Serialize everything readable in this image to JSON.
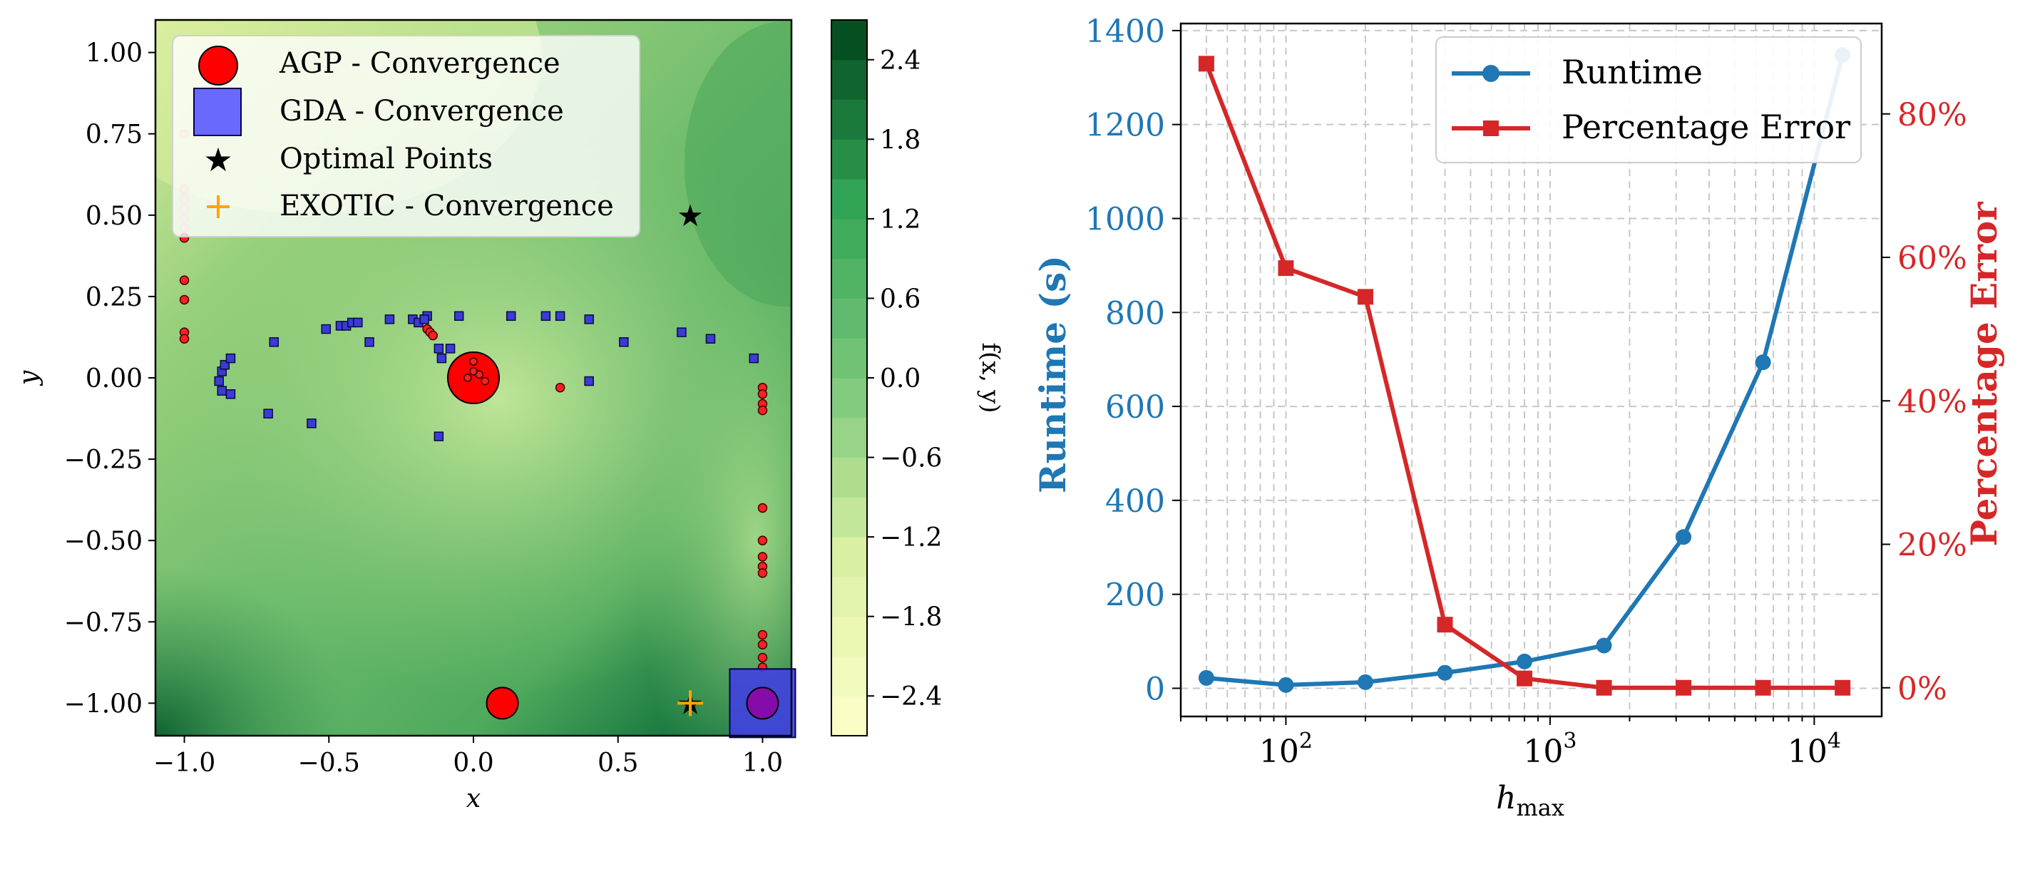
{
  "chart_data": [
    {
      "type": "contour",
      "xlabel": "x",
      "ylabel": "y",
      "xlim": [
        -1.1,
        1.1
      ],
      "ylim": [
        -1.1,
        1.1
      ],
      "xticks": [
        {
          "v": -1.0,
          "label": "−1.0"
        },
        {
          "v": -0.5,
          "label": "−0.5"
        },
        {
          "v": 0.0,
          "label": "0.0"
        },
        {
          "v": 0.5,
          "label": "0.5"
        },
        {
          "v": 1.0,
          "label": "1.0"
        }
      ],
      "yticks": [
        {
          "v": 1.0,
          "label": "1.00"
        },
        {
          "v": 0.75,
          "label": "0.75"
        },
        {
          "v": 0.5,
          "label": "0.50"
        },
        {
          "v": 0.25,
          "label": "0.25"
        },
        {
          "v": 0.0,
          "label": "0.00"
        },
        {
          "v": -0.25,
          "label": "−0.25"
        },
        {
          "v": -0.5,
          "label": "−0.50"
        },
        {
          "v": -0.75,
          "label": "−0.75"
        },
        {
          "v": -1.0,
          "label": "−1.00"
        }
      ],
      "colorbar": {
        "label": "f(x, y)",
        "range": [
          -2.7,
          2.7
        ],
        "levels": 18,
        "ticks": [
          {
            "v": 2.4,
            "label": "2.4"
          },
          {
            "v": 1.8,
            "label": "1.8"
          },
          {
            "v": 1.2,
            "label": "1.2"
          },
          {
            "v": 0.6,
            "label": "0.6"
          },
          {
            "v": 0.0,
            "label": "0.0"
          },
          {
            "v": -0.6,
            "label": "−0.6"
          },
          {
            "v": -1.2,
            "label": "−1.2"
          },
          {
            "v": -1.8,
            "label": "−1.8"
          },
          {
            "v": -2.4,
            "label": "−2.4"
          }
        ]
      },
      "legend": {
        "placement": "upper-left",
        "entries": [
          {
            "label": "AGP - Convergence",
            "marker": "circle",
            "color": "#ff0000"
          },
          {
            "label": "GDA - Convergence",
            "marker": "square",
            "color": "#5a5aff"
          },
          {
            "label": "Optimal Points",
            "marker": "star",
            "color": "#000000"
          },
          {
            "label": "EXOTIC - Convergence",
            "marker": "plus",
            "color": "#ffa500"
          }
        ]
      },
      "agp_convergence": [
        [
          0.0,
          0.0
        ],
        [
          0.1,
          -1.0
        ],
        [
          1.0,
          -1.0
        ]
      ],
      "gda_convergence": [
        [
          1.0,
          -1.0
        ]
      ],
      "optimal_points": [
        [
          0.75,
          0.5
        ],
        [
          0.75,
          -1.0
        ]
      ],
      "exotic_convergence": [
        [
          0.75,
          -1.0
        ]
      ],
      "agp_trajectory": [
        [
          -1.0,
          0.75
        ],
        [
          -1.0,
          0.58
        ],
        [
          -1.0,
          0.55
        ],
        [
          -1.0,
          0.52
        ],
        [
          -1.0,
          0.49
        ],
        [
          -1.0,
          0.46
        ],
        [
          -1.0,
          0.43
        ],
        [
          -1.0,
          0.3
        ],
        [
          -1.0,
          0.24
        ],
        [
          -1.0,
          0.14
        ],
        [
          -1.0,
          0.12
        ],
        [
          -0.16,
          0.15
        ],
        [
          -0.15,
          0.14
        ],
        [
          -0.14,
          0.13
        ],
        [
          0.0,
          0.05
        ],
        [
          -0.02,
          0.0
        ],
        [
          0.02,
          0.01
        ],
        [
          0.04,
          -0.01
        ],
        [
          0.0,
          0.02
        ],
        [
          0.3,
          -0.03
        ],
        [
          1.0,
          -0.03
        ],
        [
          1.0,
          -0.05
        ],
        [
          1.0,
          -0.08
        ],
        [
          1.0,
          -0.1
        ],
        [
          1.0,
          -0.4
        ],
        [
          1.0,
          -0.5
        ],
        [
          1.0,
          -0.55
        ],
        [
          1.0,
          -0.58
        ],
        [
          1.0,
          -0.6
        ],
        [
          1.0,
          -0.79
        ],
        [
          1.0,
          -0.82
        ],
        [
          1.0,
          -0.86
        ],
        [
          1.0,
          -0.89
        ]
      ],
      "gda_trajectory": [
        [
          -0.88,
          -0.01
        ],
        [
          -0.87,
          0.02
        ],
        [
          -0.86,
          0.04
        ],
        [
          -0.84,
          0.06
        ],
        [
          -0.87,
          -0.04
        ],
        [
          -0.84,
          -0.05
        ],
        [
          -0.69,
          0.11
        ],
        [
          -0.71,
          -0.11
        ],
        [
          -0.56,
          -0.14
        ],
        [
          -0.51,
          0.15
        ],
        [
          -0.46,
          0.16
        ],
        [
          -0.44,
          0.16
        ],
        [
          -0.42,
          0.17
        ],
        [
          -0.4,
          0.17
        ],
        [
          -0.36,
          0.11
        ],
        [
          -0.29,
          0.18
        ],
        [
          -0.21,
          0.18
        ],
        [
          -0.19,
          0.17
        ],
        [
          -0.16,
          0.19
        ],
        [
          -0.17,
          0.18
        ],
        [
          -0.12,
          0.09
        ],
        [
          -0.11,
          0.06
        ],
        [
          -0.08,
          0.09
        ],
        [
          -0.12,
          -0.18
        ],
        [
          -0.05,
          0.19
        ],
        [
          0.13,
          0.19
        ],
        [
          0.25,
          0.19
        ],
        [
          0.3,
          0.19
        ],
        [
          0.4,
          0.18
        ],
        [
          0.4,
          -0.01
        ],
        [
          0.52,
          0.11
        ],
        [
          0.72,
          0.14
        ],
        [
          0.82,
          0.12
        ],
        [
          0.97,
          0.06
        ]
      ]
    },
    {
      "type": "line",
      "xlabel": "h_max",
      "xlabel_main": "h",
      "xlabel_sub": "max",
      "ylabel": "Runtime (s)",
      "y2label": "Percentage Error",
      "xscale": "log",
      "xlim": [
        40,
        18000
      ],
      "ylim": [
        -60,
        1415
      ],
      "y2lim": [
        -4,
        92.6
      ],
      "xticks": [
        {
          "v": 100,
          "base": "10",
          "exp": "2"
        },
        {
          "v": 1000,
          "base": "10",
          "exp": "3"
        },
        {
          "v": 10000,
          "base": "10",
          "exp": "4"
        }
      ],
      "yticks": [
        "0",
        "200",
        "400",
        "600",
        "800",
        "1000",
        "1200",
        "1400"
      ],
      "y2ticks": [
        "0%",
        "20%",
        "40%",
        "60%",
        "80%"
      ],
      "grid": true,
      "legend": {
        "placement": "upper-right"
      },
      "x": [
        50,
        100,
        200,
        400,
        800,
        1600,
        3200,
        6400,
        12800
      ],
      "series": [
        {
          "name": "Runtime",
          "axis": "left",
          "marker": "circle",
          "color": "#1f77b4",
          "values": [
            22,
            7,
            13,
            33,
            57,
            91,
            322,
            694,
            1348
          ]
        },
        {
          "name": "Percentage Error",
          "axis": "right",
          "marker": "square",
          "color": "#d62728",
          "values": [
            87,
            58.5,
            54.5,
            8.8,
            1.3,
            0,
            0,
            0,
            0
          ]
        }
      ]
    }
  ]
}
